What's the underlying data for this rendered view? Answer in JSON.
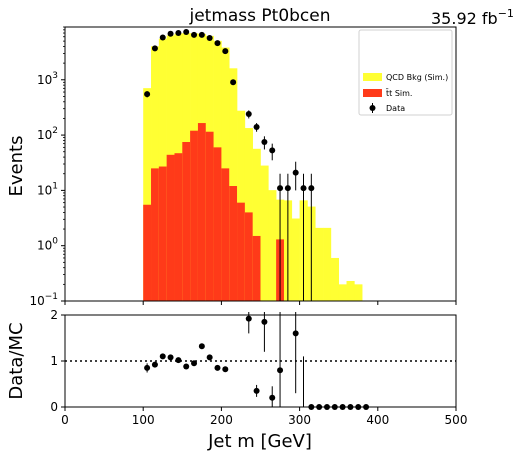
{
  "chart_data": [
    {
      "type": "bar",
      "title": "jetmass  Pt0bcen",
      "lumi_text": "35.92 fb",
      "lumi_exponent": "−1",
      "xlabel": "Jet m [GeV]",
      "ylabel": "Events",
      "yscale": "log",
      "xlim": [
        0,
        500
      ],
      "ylim": [
        0.1,
        9000
      ],
      "y_ticks": [
        {
          "v": 0.1,
          "base": "10",
          "exp": "−1"
        },
        {
          "v": 1,
          "base": "10",
          "exp": "0"
        },
        {
          "v": 10,
          "base": "10",
          "exp": "1"
        },
        {
          "v": 100,
          "base": "10",
          "exp": "2"
        },
        {
          "v": 1000,
          "base": "10",
          "exp": "3"
        }
      ],
      "bin_width": 10,
      "bin_lows": [
        100,
        110,
        120,
        130,
        140,
        150,
        160,
        170,
        180,
        190,
        200,
        210,
        220,
        230,
        240,
        250,
        260,
        270,
        280,
        290,
        300,
        310,
        320,
        330,
        340,
        350,
        360,
        370
      ],
      "series": [
        {
          "name": "QCD Bkg (Sim.)",
          "color": "#ffff33",
          "stacked": true,
          "values": [
            700,
            4000,
            5500,
            6300,
            6800,
            6900,
            6800,
            6600,
            6100,
            5000,
            3800,
            1600,
            270,
            130,
            55,
            28,
            10,
            5.5,
            6.5,
            3,
            6.5,
            5,
            2,
            2,
            0.5,
            0.1,
            0.13,
            0.1
          ]
        },
        {
          "name": "tt Sim.",
          "legend_label": "t̄t Sim.",
          "color": "#ff3a19",
          "stacked": true,
          "values": [
            5.5,
            25,
            27,
            44,
            47,
            75,
            120,
            165,
            115,
            60,
            25,
            12,
            6,
            4,
            1.5,
            0.1,
            0.1,
            1.3,
            0.1,
            0.1,
            0.1,
            0.1,
            0.1,
            0.1,
            0.1,
            0.1,
            0.1,
            0.1
          ]
        },
        {
          "name": "Data",
          "type": "errorbar",
          "color": "#000000",
          "points": [
            {
              "x": 105,
              "y": 550,
              "lo": 480,
              "hi": 620
            },
            {
              "x": 115,
              "y": 3700,
              "lo": 3500,
              "hi": 3900
            },
            {
              "x": 125,
              "y": 5800,
              "lo": 5600,
              "hi": 6000
            },
            {
              "x": 135,
              "y": 6800,
              "lo": 6600,
              "hi": 7000
            },
            {
              "x": 145,
              "y": 7000,
              "lo": 6800,
              "hi": 7200
            },
            {
              "x": 155,
              "y": 7300,
              "lo": 7100,
              "hi": 7500
            },
            {
              "x": 165,
              "y": 6500,
              "lo": 6300,
              "hi": 6700
            },
            {
              "x": 175,
              "y": 6500,
              "lo": 6300,
              "hi": 6700
            },
            {
              "x": 185,
              "y": 5700,
              "lo": 5500,
              "hi": 5900
            },
            {
              "x": 195,
              "y": 4600,
              "lo": 4400,
              "hi": 4800
            },
            {
              "x": 205,
              "y": 3300,
              "lo": 3100,
              "hi": 3500
            },
            {
              "x": 215,
              "y": 900,
              "lo": 830,
              "hi": 970
            },
            {
              "x": 235,
              "y": 240,
              "lo": 200,
              "hi": 280
            },
            {
              "x": 245,
              "y": 140,
              "lo": 115,
              "hi": 165
            },
            {
              "x": 255,
              "y": 75,
              "lo": 55,
              "hi": 95
            },
            {
              "x": 265,
              "y": 53,
              "lo": 35,
              "hi": 70
            },
            {
              "x": 275,
              "y": 11,
              "lo": 0.1,
              "hi": 20
            },
            {
              "x": 285,
              "y": 11,
              "lo": 0.1,
              "hi": 20
            },
            {
              "x": 295,
              "y": 21,
              "lo": 10,
              "hi": 33
            },
            {
              "x": 305,
              "y": 11,
              "lo": 0.1,
              "hi": 20
            },
            {
              "x": 315,
              "y": 11,
              "lo": 0.1,
              "hi": 20
            }
          ]
        }
      ],
      "legend": {
        "position": "top-right",
        "entries": [
          {
            "label": "QCD Bkg (Sim.)",
            "symbol": "patch",
            "color": "#ffff33"
          },
          {
            "label": "t̄t Sim.",
            "symbol": "patch",
            "color": "#ff3a19"
          },
          {
            "label": "Data",
            "symbol": "errorbar",
            "color": "#000000"
          }
        ]
      }
    },
    {
      "type": "scatter",
      "title": "",
      "xlabel": "Jet m [GeV]",
      "ylabel": "Data/MC",
      "xlim": [
        0,
        500
      ],
      "ylim": [
        0,
        2
      ],
      "x_ticks": [
        0,
        100,
        200,
        300,
        400,
        500
      ],
      "y_ticks": [
        0,
        1,
        2
      ],
      "reference_line": {
        "y": 1,
        "style": "dotted"
      },
      "series": [
        {
          "name": "ratio",
          "type": "errorbar",
          "color": "#000000",
          "points": [
            {
              "x": 105,
              "y": 0.85,
              "lo": 0.75,
              "hi": 0.95
            },
            {
              "x": 115,
              "y": 0.92,
              "lo": 0.88,
              "hi": 0.96
            },
            {
              "x": 125,
              "y": 1.1,
              "lo": 1.07,
              "hi": 1.13
            },
            {
              "x": 135,
              "y": 1.08,
              "lo": 1.05,
              "hi": 1.11
            },
            {
              "x": 145,
              "y": 1.02,
              "lo": 0.99,
              "hi": 1.05
            },
            {
              "x": 155,
              "y": 0.88,
              "lo": 0.85,
              "hi": 0.91
            },
            {
              "x": 165,
              "y": 0.95,
              "lo": 0.92,
              "hi": 0.98
            },
            {
              "x": 175,
              "y": 1.32,
              "lo": 1.28,
              "hi": 1.36
            },
            {
              "x": 185,
              "y": 1.08,
              "lo": 1.05,
              "hi": 1.11
            },
            {
              "x": 195,
              "y": 0.85,
              "lo": 0.82,
              "hi": 0.88
            },
            {
              "x": 205,
              "y": 0.82,
              "lo": 0.79,
              "hi": 0.85
            },
            {
              "x": 235,
              "y": 1.92,
              "lo": 1.6,
              "hi": 2.3
            },
            {
              "x": 245,
              "y": 0.35,
              "lo": 0.22,
              "hi": 0.48
            },
            {
              "x": 255,
              "y": 1.85,
              "lo": 1.2,
              "hi": 2.5
            },
            {
              "x": 265,
              "y": 0.2,
              "lo": 0.0,
              "hi": 0.45
            },
            {
              "x": 275,
              "y": 0.8,
              "lo": 0.0,
              "hi": 2.2
            },
            {
              "x": 295,
              "y": 1.6,
              "lo": 0.3,
              "hi": 2.8
            },
            {
              "x": 305,
              "y": -0.1,
              "lo": 0.0,
              "hi": 1.1
            },
            {
              "x": 315,
              "y": 0,
              "lo": 0,
              "hi": 0
            },
            {
              "x": 325,
              "y": 0,
              "lo": 0,
              "hi": 0
            },
            {
              "x": 335,
              "y": 0,
              "lo": 0,
              "hi": 0
            },
            {
              "x": 345,
              "y": 0,
              "lo": 0,
              "hi": 0
            },
            {
              "x": 355,
              "y": 0,
              "lo": 0,
              "hi": 0
            },
            {
              "x": 365,
              "y": 0,
              "lo": 0,
              "hi": 0
            },
            {
              "x": 375,
              "y": 0,
              "lo": 0,
              "hi": 0
            },
            {
              "x": 385,
              "y": 0,
              "lo": 0,
              "hi": 0
            }
          ]
        }
      ]
    }
  ]
}
